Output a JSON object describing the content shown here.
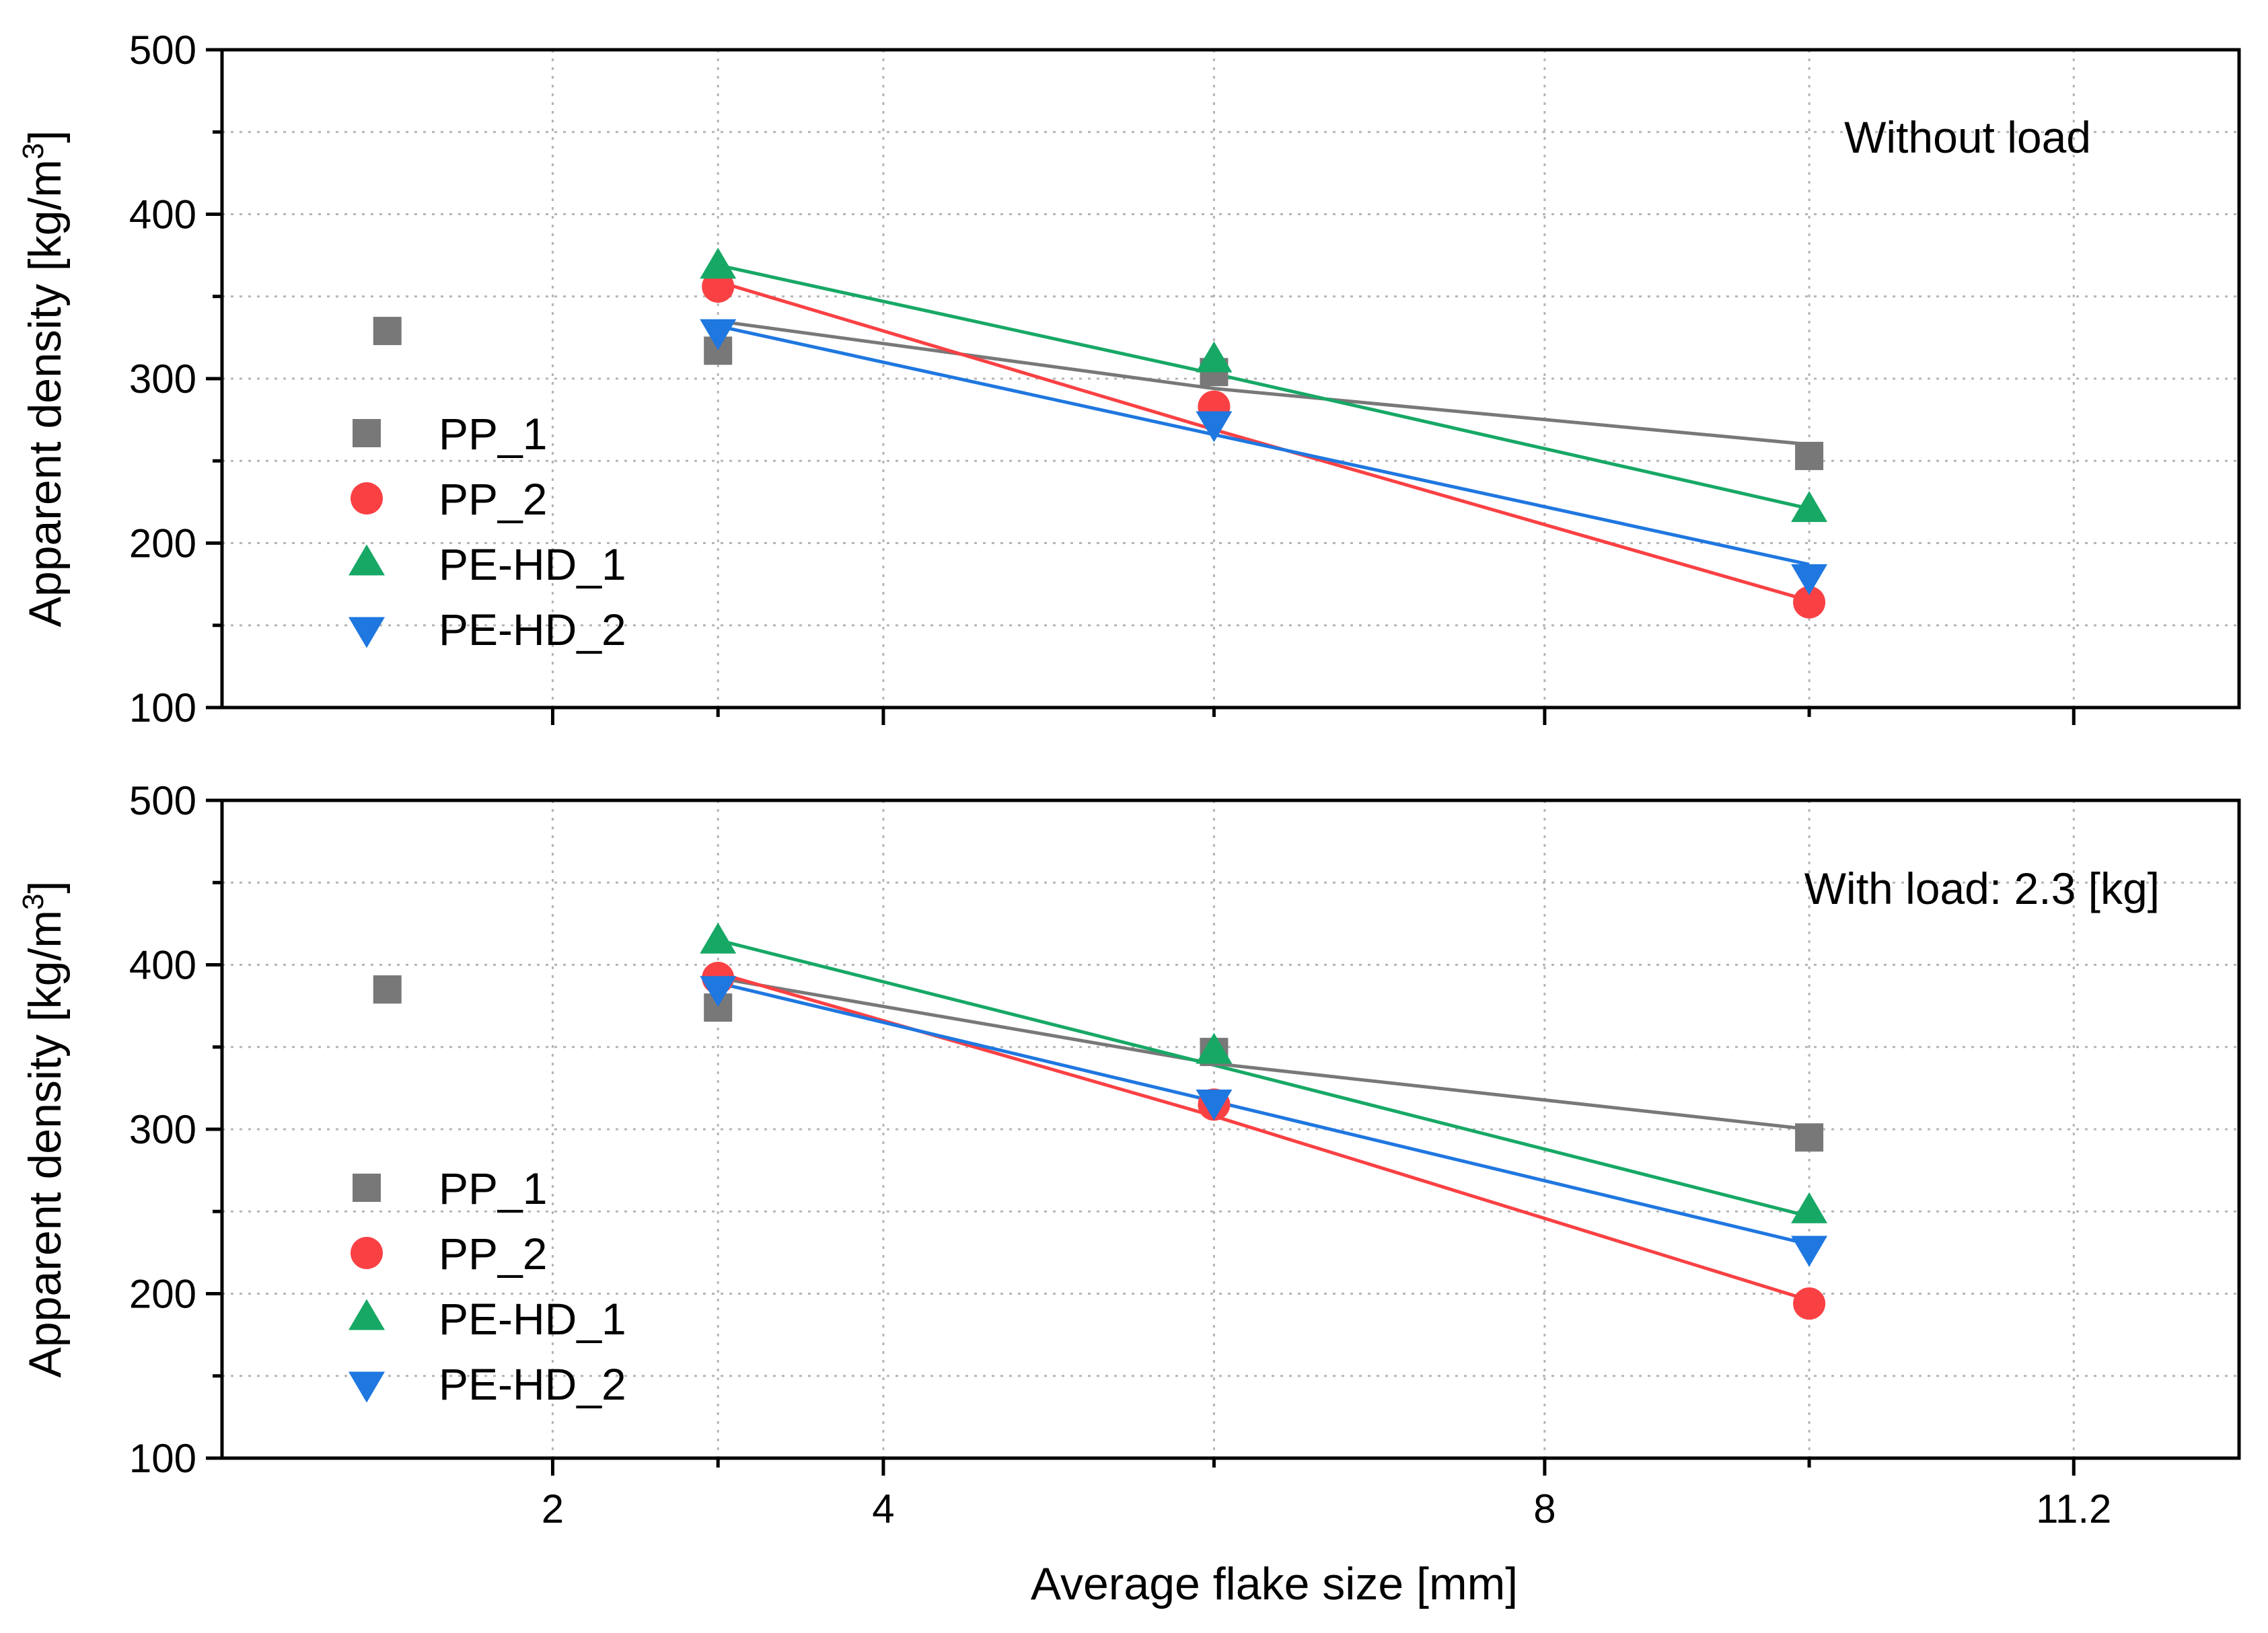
{
  "chart_data": [
    {
      "type": "scatter",
      "panel": "top",
      "annotation": "Without load",
      "ylabel": "Apparent density [kg/m",
      "ylabel_sup": "3",
      "ylabel_close": "]",
      "xlim": [
        0,
        12.2
      ],
      "ylim": [
        100,
        500
      ],
      "yticks": [
        100,
        200,
        300,
        400,
        500
      ],
      "grid": true,
      "legend_position": "left",
      "series": [
        {
          "name": "PP_1",
          "marker": "square",
          "color": "#787878",
          "x": [
            1.0,
            3.0,
            6.0,
            9.6
          ],
          "y": [
            329,
            317,
            304,
            253
          ],
          "fit_y": [
            335,
            294,
            260
          ]
        },
        {
          "name": "PP_2",
          "marker": "circle",
          "color": "#f94144",
          "x": [
            3.0,
            6.0,
            9.6
          ],
          "y": [
            356,
            283,
            164
          ],
          "fit_y": [
            359,
            269,
            165
          ]
        },
        {
          "name": "PE-HD_1",
          "marker": "triangle-up",
          "color": "#17a866",
          "x": [
            3.0,
            6.0,
            9.6
          ],
          "y": [
            368,
            311,
            220
          ],
          "fit_y": [
            369,
            303,
            221
          ]
        },
        {
          "name": "PE-HD_2",
          "marker": "triangle-down",
          "color": "#1f77e0",
          "x": [
            3.0,
            6.0,
            9.6
          ],
          "y": [
            329,
            273,
            180
          ],
          "fit_y": [
            332,
            266,
            187
          ]
        }
      ]
    },
    {
      "type": "scatter",
      "panel": "bottom",
      "annotation": "With load: 2.3 [kg]",
      "ylabel": "Apparent density [kg/m",
      "ylabel_sup": "3",
      "ylabel_close": "]",
      "xlabel": "Average flake size [mm]",
      "xlim": [
        0,
        12.2
      ],
      "ylim": [
        100,
        500
      ],
      "xticks": [
        {
          "value": 2,
          "label": "2"
        },
        {
          "value": 4,
          "label": "4"
        },
        {
          "value": 8,
          "label": "8"
        },
        {
          "value": 11.2,
          "label": "11.2"
        }
      ],
      "xminor": [
        3.0,
        6.0,
        9.6
      ],
      "yticks": [
        100,
        200,
        300,
        400,
        500
      ],
      "grid": true,
      "legend_position": "left",
      "series": [
        {
          "name": "PP_1",
          "marker": "square",
          "color": "#787878",
          "x": [
            1.0,
            3.0,
            6.0,
            9.6
          ],
          "y": [
            385,
            374,
            347,
            295
          ],
          "fit_y": [
            392,
            340,
            300
          ]
        },
        {
          "name": "PP_2",
          "marker": "circle",
          "color": "#f94144",
          "x": [
            3.0,
            6.0,
            9.6
          ],
          "y": [
            392,
            315,
            194
          ],
          "fit_y": [
            395,
            308,
            196
          ]
        },
        {
          "name": "PE-HD_1",
          "marker": "triangle-up",
          "color": "#17a866",
          "x": [
            3.0,
            6.0,
            9.6
          ],
          "y": [
            414,
            347,
            250
          ],
          "fit_y": [
            415,
            339,
            247
          ]
        },
        {
          "name": "PE-HD_2",
          "marker": "triangle-down",
          "color": "#1f77e0",
          "x": [
            3.0,
            6.0,
            9.6
          ],
          "y": [
            386,
            317,
            228
          ],
          "fit_y": [
            389,
            317,
            230
          ]
        }
      ]
    }
  ]
}
